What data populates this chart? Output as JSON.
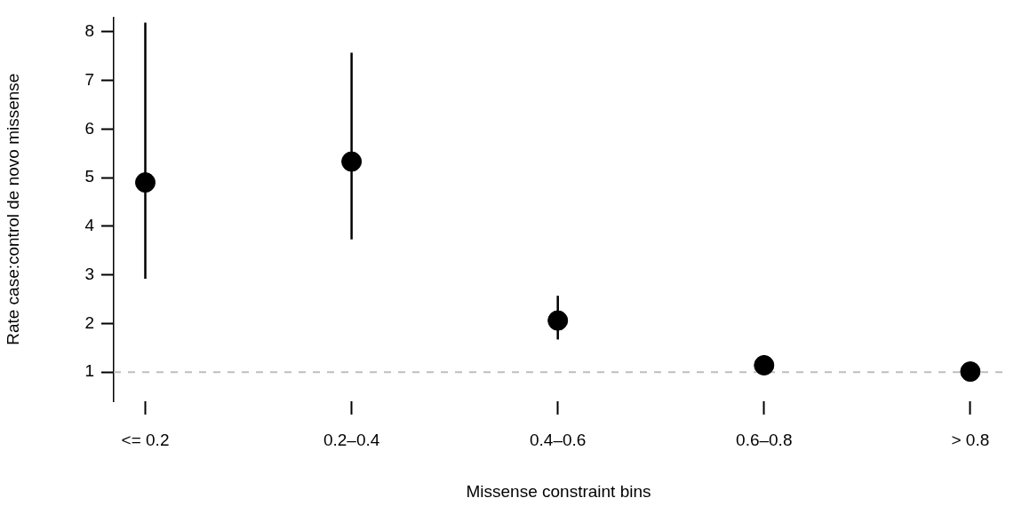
{
  "chart_data": {
    "type": "scatter",
    "xlabel": "Missense constraint bins",
    "ylabel": "Rate case:control de novo missense",
    "categories": [
      "<= 0.2",
      "0.2–0.4",
      "0.4–0.6",
      "0.6–0.8",
      "> 0.8"
    ],
    "series": [
      {
        "color": "#000000",
        "values": [
          4.9,
          5.33,
          2.06,
          1.14,
          1.01
        ],
        "errors": [
          [
            2.92,
            8.19
          ],
          [
            3.73,
            7.57
          ],
          [
            1.67,
            2.57
          ],
          [
            0.95,
            1.35
          ],
          null
        ]
      }
    ],
    "ylim": [
      0.4,
      8.3
    ],
    "yticks": [
      1,
      2,
      3,
      4,
      5,
      6,
      7,
      8
    ],
    "marker": "circle",
    "grid": false,
    "legend": false,
    "ref_lines": [
      {
        "axis": "y",
        "value": 1,
        "color": "#bebebe",
        "line_style": "dashed"
      }
    ]
  }
}
